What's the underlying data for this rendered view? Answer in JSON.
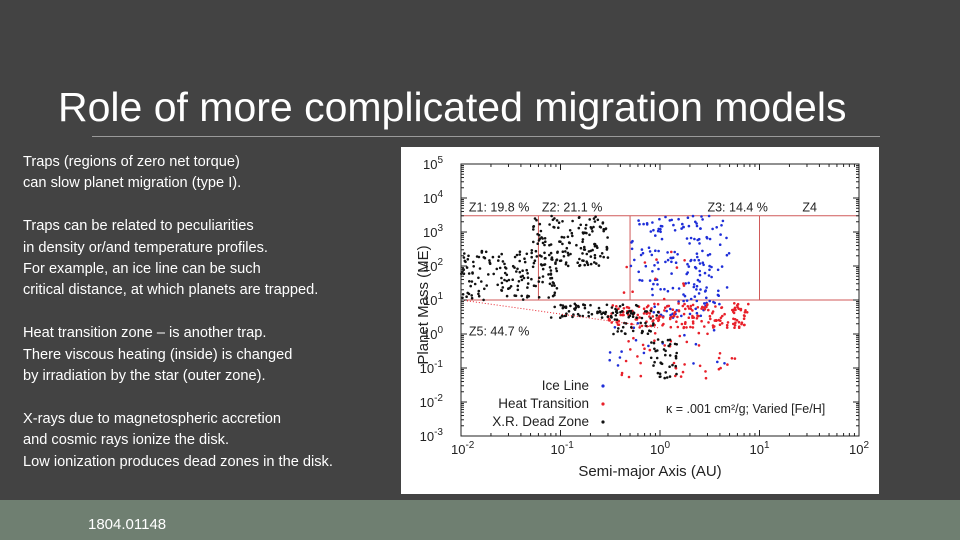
{
  "slide": {
    "title": "Role of more complicated migration models",
    "paragraphs": [
      [
        "Traps (regions of zero net torque)",
        "can slow planet migration (type I)."
      ],
      [
        "Traps can be related to peculiarities",
        "in density or/and temperature profiles.",
        "For example, an ice line can be such",
        "critical distance, at which planets are trapped."
      ],
      [
        "Heat transition zone – is another trap.",
        "There viscous heating (inside) is changed",
        "by irradiation by the star (outer zone)."
      ],
      [
        "X-rays due to magnetospheric accretion",
        "and cosmic rays ionize the disk.",
        "Low ionization produces dead zones in the disk."
      ]
    ],
    "reference": "1804.01148"
  },
  "chart_data": {
    "type": "scatter",
    "xlabel": "Semi-major Axis (AU)",
    "ylabel": "Planet Mass (M_E)",
    "x_scale": "log",
    "y_scale": "log",
    "xlim": [
      0.01,
      100
    ],
    "ylim": [
      0.001,
      100000
    ],
    "x_ticks": [
      {
        "base": "10",
        "exp": "-2",
        "v": 0.01
      },
      {
        "base": "10",
        "exp": "-1",
        "v": 0.1
      },
      {
        "base": "10",
        "exp": "0",
        "v": 1
      },
      {
        "base": "10",
        "exp": "1",
        "v": 10
      },
      {
        "base": "10",
        "exp": "2",
        "v": 100
      }
    ],
    "y_ticks": [
      {
        "base": "10",
        "exp": "-3",
        "v": 0.001
      },
      {
        "base": "10",
        "exp": "-2",
        "v": 0.01
      },
      {
        "base": "10",
        "exp": "-1",
        "v": 0.1
      },
      {
        "base": "10",
        "exp": "0",
        "v": 1
      },
      {
        "base": "10",
        "exp": "1",
        "v": 10
      },
      {
        "base": "10",
        "exp": "2",
        "v": 100
      },
      {
        "base": "10",
        "exp": "3",
        "v": 1000
      },
      {
        "base": "10",
        "exp": "4",
        "v": 10000
      },
      {
        "base": "10",
        "exp": "5",
        "v": 100000
      }
    ],
    "zones": [
      {
        "label": "Z1: 19.8 %",
        "x": 0.012,
        "y": 4000
      },
      {
        "label": "Z2: 21.1 %",
        "x": 0.065,
        "y": 4000
      },
      {
        "label": "Z3: 14.4 %",
        "x": 3.0,
        "y": 4000
      },
      {
        "label": "Z4",
        "x": 27,
        "y": 4000
      },
      {
        "label": "Z5: 44.7 %",
        "x": 0.012,
        "y": 0.9
      }
    ],
    "zone_lines": [
      {
        "x1": 0.01,
        "y1": 3000,
        "x2": 100,
        "y2": 3000
      },
      {
        "x1": 0.01,
        "y1": 10,
        "x2": 100,
        "y2": 10
      },
      {
        "x1": 0.06,
        "y1": 3000,
        "x2": 0.06,
        "y2": 10
      },
      {
        "x1": 0.5,
        "y1": 3000,
        "x2": 0.5,
        "y2": 10
      },
      {
        "x1": 10,
        "y1": 3000,
        "x2": 10,
        "y2": 10
      }
    ],
    "colors": {
      "ice_line": "#1e2ed8",
      "heat_transition": "#e8202a",
      "dead_zone": "#111111",
      "zone_lines": "#d05a5a"
    },
    "series": [
      {
        "name": "Ice Line",
        "color": "#1e2ed8",
        "clusters": [
          {
            "x": [
              0.5,
              5.0
            ],
            "y": [
              20,
              3000
            ],
            "n": 130
          },
          {
            "x": [
              0.8,
              4.0
            ],
            "y": [
              3,
              30
            ],
            "n": 50
          },
          {
            "x": [
              0.3,
              6.0
            ],
            "y": [
              0.1,
              5
            ],
            "n": 20
          }
        ]
      },
      {
        "name": "Heat Transition",
        "color": "#e8202a",
        "clusters": [
          {
            "x": [
              0.3,
              8.0
            ],
            "y": [
              1.5,
              8
            ],
            "n": 180
          },
          {
            "x": [
              0.4,
              6.0
            ],
            "y": [
              0.05,
              1.5
            ],
            "n": 40
          },
          {
            "x": [
              0.3,
              2.0
            ],
            "y": [
              10,
              300
            ],
            "n": 12
          }
        ]
      },
      {
        "name": "X.R. Dead Zone",
        "color": "#111111",
        "clusters": [
          {
            "x": [
              0.01,
              0.1
            ],
            "y": [
              10,
              300
            ],
            "n": 150
          },
          {
            "x": [
              0.05,
              0.3
            ],
            "y": [
              100,
              3000
            ],
            "n": 140
          },
          {
            "x": [
              0.08,
              0.6
            ],
            "y": [
              3,
              8
            ],
            "n": 70
          },
          {
            "x": [
              0.3,
              1.0
            ],
            "y": [
              1,
              5
            ],
            "n": 40
          },
          {
            "x": [
              0.8,
              1.5
            ],
            "y": [
              0.05,
              0.8
            ],
            "n": 40
          }
        ]
      }
    ],
    "fit_line": {
      "x": [
        0.01,
        1.0
      ],
      "y": [
        10,
        1.5
      ],
      "color": "#e8202a",
      "style": "dotted"
    },
    "legend": [
      "Ice Line",
      "Heat Transition",
      "X.R. Dead Zone"
    ],
    "legend_position": "bottom-left",
    "annotation": "κ = .001 cm²/g; Varied [Fe/H]",
    "grid": false
  }
}
